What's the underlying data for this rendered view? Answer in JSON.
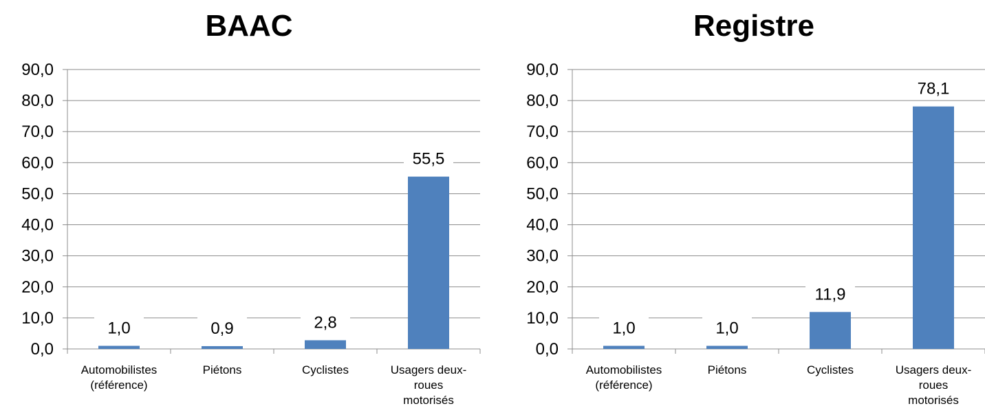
{
  "chart_data": [
    {
      "type": "bar",
      "title": "BAAC",
      "categories": [
        [
          "Automobilistes",
          "(référence)"
        ],
        [
          "Piétons"
        ],
        [
          "Cyclistes"
        ],
        [
          "Usagers deux-",
          "roues",
          "motorisés"
        ]
      ],
      "values": [
        1.0,
        0.9,
        2.8,
        55.5
      ],
      "data_labels": [
        "1,0",
        "0,9",
        "2,8",
        "55,5"
      ],
      "ylim": [
        0,
        90
      ],
      "yticks": [
        "0,0",
        "10,0",
        "20,0",
        "30,0",
        "40,0",
        "50,0",
        "60,0",
        "70,0",
        "80,0",
        "90,0"
      ],
      "grid": true,
      "bar_color": "#4f81bd"
    },
    {
      "type": "bar",
      "title": "Registre",
      "categories": [
        [
          "Automobilistes",
          "(référence)"
        ],
        [
          "Piétons"
        ],
        [
          "Cyclistes"
        ],
        [
          "Usagers deux-",
          "roues",
          "motorisés"
        ]
      ],
      "values": [
        1.0,
        1.0,
        11.9,
        78.1
      ],
      "data_labels": [
        "1,0",
        "1,0",
        "11,9",
        "78,1"
      ],
      "ylim": [
        0,
        90
      ],
      "yticks": [
        "0,0",
        "10,0",
        "20,0",
        "30,0",
        "40,0",
        "50,0",
        "60,0",
        "70,0",
        "80,0",
        "90,0"
      ],
      "grid": true,
      "bar_color": "#4f81bd"
    }
  ]
}
